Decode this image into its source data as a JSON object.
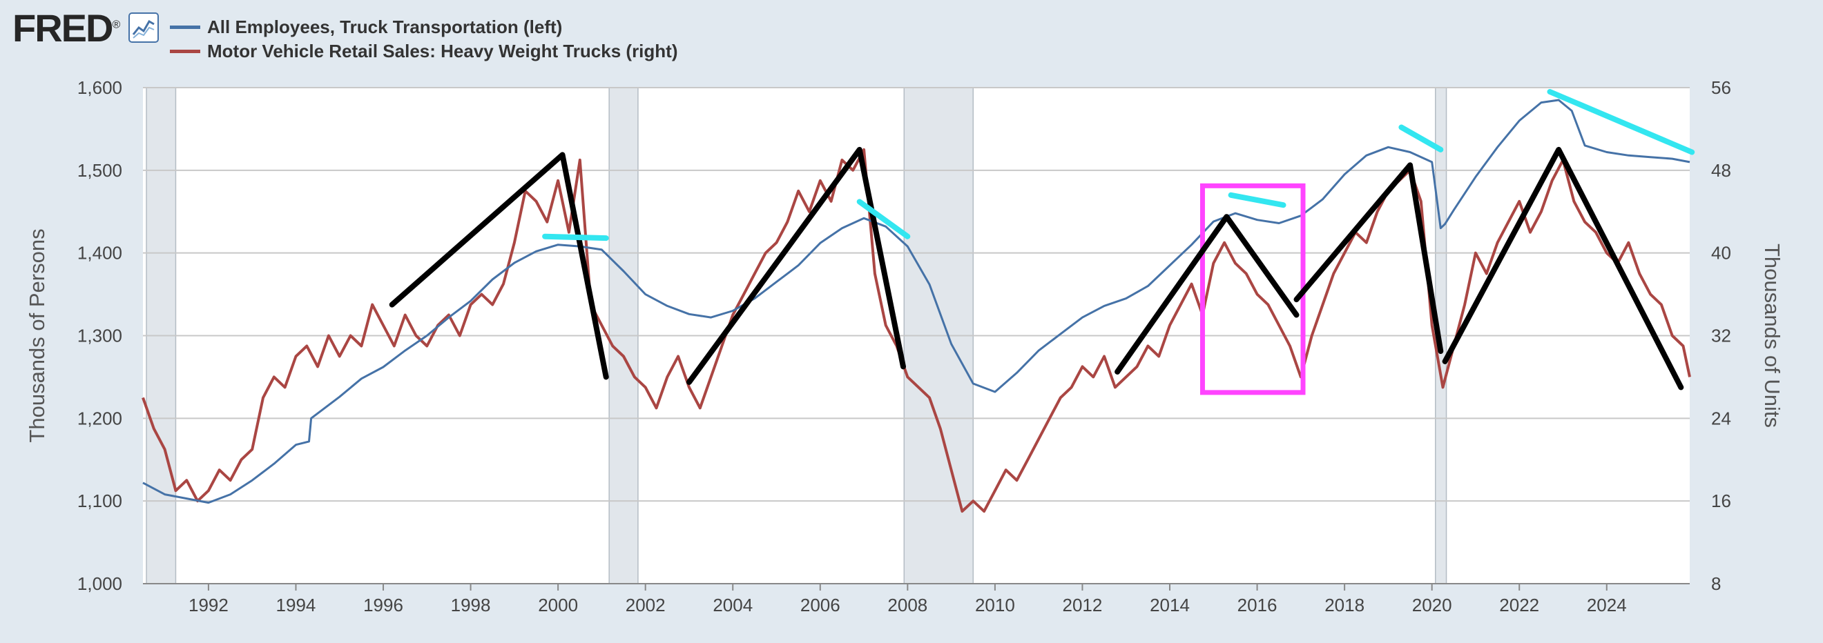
{
  "header": {
    "logo": "FRED",
    "logo_mark": "®"
  },
  "colors": {
    "background": "#e1e9f0",
    "plot_bg": "#ffffff",
    "grid": "#c8c8c8",
    "recession": "#e1e6eb",
    "series_left": "#4572a7",
    "series_right": "#aa4643",
    "trend_black": "#000000",
    "trend_cyan": "#33e6f0",
    "highlight_box": "#ff44ff"
  },
  "chart_data": {
    "type": "line",
    "title": "",
    "legend": [
      "All Employees, Truck Transportation (left)",
      "Motor Vehicle Retail Sales: Heavy Weight Trucks (right)"
    ],
    "legend_placement": "top-left",
    "x_axis": {
      "range": [
        1990.5,
        2025.9
      ],
      "ticks": [
        1992,
        1994,
        1996,
        1998,
        2000,
        2002,
        2004,
        2006,
        2008,
        2010,
        2012,
        2014,
        2016,
        2018,
        2020,
        2022,
        2024
      ],
      "tick_labels": [
        "1992",
        "1994",
        "1996",
        "1998",
        "2000",
        "2002",
        "2004",
        "2006",
        "2008",
        "2010",
        "2012",
        "2014",
        "2016",
        "2018",
        "2020",
        "2022",
        "2024"
      ]
    },
    "y_left": {
      "label": "Thousands of Persons",
      "range": [
        1000,
        1600
      ],
      "ticks": [
        1000,
        1100,
        1200,
        1300,
        1400,
        1500,
        1600
      ],
      "tick_labels": [
        "1,000",
        "1,100",
        "1,200",
        "1,300",
        "1,400",
        "1,500",
        "1,600"
      ]
    },
    "y_right": {
      "label": "Thousands of Units",
      "range": [
        8,
        56
      ],
      "ticks": [
        8,
        16,
        24,
        32,
        40,
        48,
        56
      ],
      "tick_labels": [
        "8",
        "16",
        "24",
        "32",
        "40",
        "48",
        "56"
      ]
    },
    "grid": true,
    "recessions": [
      [
        1990.58,
        1991.25
      ],
      [
        2001.17,
        2001.83
      ],
      [
        2007.92,
        2009.5
      ],
      [
        2020.08,
        2020.33
      ]
    ],
    "series": [
      {
        "name": "All Employees, Truck Transportation (left)",
        "axis": "left",
        "x": [
          1990.5,
          1991.0,
          1991.5,
          1992.0,
          1992.5,
          1993.0,
          1993.5,
          1994.0,
          1994.3,
          1994.35,
          1995.0,
          1995.5,
          1996.0,
          1996.5,
          1997.0,
          1997.5,
          1998.0,
          1998.5,
          1999.0,
          1999.5,
          2000.0,
          2000.5,
          2001.0,
          2001.5,
          2002.0,
          2002.5,
          2003.0,
          2003.5,
          2004.0,
          2004.5,
          2005.0,
          2005.5,
          2006.0,
          2006.5,
          2007.0,
          2007.5,
          2008.0,
          2008.5,
          2009.0,
          2009.5,
          2010.0,
          2010.5,
          2011.0,
          2011.5,
          2012.0,
          2012.5,
          2013.0,
          2013.5,
          2014.0,
          2014.5,
          2015.0,
          2015.5,
          2016.0,
          2016.5,
          2017.0,
          2017.5,
          2018.0,
          2018.5,
          2019.0,
          2019.5,
          2020.0,
          2020.2,
          2020.3,
          2020.5,
          2021.0,
          2021.5,
          2022.0,
          2022.5,
          2022.9,
          2023.2,
          2023.5,
          2024.0,
          2024.5,
          2025.0,
          2025.5,
          2025.9
        ],
        "values": [
          1122,
          1108,
          1103,
          1098,
          1108,
          1125,
          1145,
          1168,
          1172,
          1200,
          1226,
          1248,
          1262,
          1282,
          1300,
          1322,
          1342,
          1368,
          1388,
          1402,
          1410,
          1408,
          1404,
          1378,
          1350,
          1336,
          1326,
          1322,
          1330,
          1345,
          1365,
          1385,
          1412,
          1430,
          1442,
          1432,
          1408,
          1362,
          1290,
          1242,
          1232,
          1255,
          1282,
          1302,
          1322,
          1336,
          1345,
          1360,
          1385,
          1410,
          1438,
          1448,
          1440,
          1436,
          1445,
          1465,
          1495,
          1518,
          1528,
          1522,
          1510,
          1430,
          1435,
          1452,
          1492,
          1528,
          1560,
          1582,
          1585,
          1572,
          1530,
          1522,
          1518,
          1516,
          1514,
          1510
        ]
      },
      {
        "name": "Motor Vehicle Retail Sales: Heavy Weight Trucks (right)",
        "axis": "right",
        "x": [
          1990.5,
          1990.75,
          1991.0,
          1991.25,
          1991.5,
          1991.75,
          1992.0,
          1992.25,
          1992.5,
          1992.75,
          1993.0,
          1993.25,
          1993.5,
          1993.75,
          1994.0,
          1994.25,
          1994.5,
          1994.75,
          1995.0,
          1995.25,
          1995.5,
          1995.75,
          1996.0,
          1996.25,
          1996.5,
          1996.75,
          1997.0,
          1997.25,
          1997.5,
          1997.75,
          1998.0,
          1998.25,
          1998.5,
          1998.75,
          1999.0,
          1999.25,
          1999.5,
          1999.75,
          2000.0,
          2000.25,
          2000.5,
          2000.75,
          2001.0,
          2001.25,
          2001.5,
          2001.75,
          2002.0,
          2002.25,
          2002.5,
          2002.75,
          2003.0,
          2003.25,
          2003.5,
          2003.75,
          2004.0,
          2004.25,
          2004.5,
          2004.75,
          2005.0,
          2005.25,
          2005.5,
          2005.75,
          2006.0,
          2006.25,
          2006.5,
          2006.75,
          2007.0,
          2007.25,
          2007.5,
          2007.75,
          2008.0,
          2008.25,
          2008.5,
          2008.75,
          2009.0,
          2009.25,
          2009.5,
          2009.75,
          2010.0,
          2010.25,
          2010.5,
          2010.75,
          2011.0,
          2011.25,
          2011.5,
          2011.75,
          2012.0,
          2012.25,
          2012.5,
          2012.75,
          2013.0,
          2013.25,
          2013.5,
          2013.75,
          2014.0,
          2014.25,
          2014.5,
          2014.75,
          2015.0,
          2015.25,
          2015.5,
          2015.75,
          2016.0,
          2016.25,
          2016.5,
          2016.75,
          2017.0,
          2017.25,
          2017.5,
          2017.75,
          2018.0,
          2018.25,
          2018.5,
          2018.75,
          2019.0,
          2019.25,
          2019.5,
          2019.75,
          2020.0,
          2020.25,
          2020.5,
          2020.75,
          2021.0,
          2021.25,
          2021.5,
          2021.75,
          2022.0,
          2022.25,
          2022.5,
          2022.75,
          2023.0,
          2023.25,
          2023.5,
          2023.75,
          2024.0,
          2024.25,
          2024.5,
          2024.75,
          2025.0,
          2025.25,
          2025.5,
          2025.75,
          2025.9
        ],
        "values": [
          26,
          23,
          21,
          17,
          18,
          16,
          17,
          19,
          18,
          20,
          21,
          26,
          28,
          27,
          30,
          31,
          29,
          32,
          30,
          32,
          31,
          35,
          33,
          31,
          34,
          32,
          31,
          33,
          34,
          32,
          35,
          36,
          35,
          37,
          41,
          46,
          45,
          43,
          47,
          42,
          49,
          35,
          33,
          31,
          30,
          28,
          27,
          25,
          28,
          30,
          27,
          25,
          28,
          31,
          34,
          36,
          38,
          40,
          41,
          43,
          46,
          44,
          47,
          45,
          49,
          48,
          50,
          38,
          33,
          31,
          28,
          27,
          26,
          23,
          19,
          15,
          16,
          15,
          17,
          19,
          18,
          20,
          22,
          24,
          26,
          27,
          29,
          28,
          30,
          27,
          28,
          29,
          31,
          30,
          33,
          35,
          37,
          34,
          39,
          41,
          39,
          38,
          36,
          35,
          33,
          31,
          28,
          32,
          35,
          38,
          40,
          42,
          41,
          44,
          46,
          47,
          48,
          45,
          33,
          27,
          31,
          35,
          40,
          38,
          41,
          43,
          45,
          42,
          44,
          47,
          49,
          45,
          43,
          42,
          40,
          39,
          41,
          38,
          36,
          35,
          32,
          31,
          28
        ]
      }
    ],
    "annotations": {
      "black_trend_lines": [
        {
          "x": [
            1996.2,
            2000.1,
            2001.1
          ],
          "y_right": [
            35,
            49.5,
            28
          ]
        },
        {
          "x": [
            2003.0,
            2006.9,
            2007.9
          ],
          "y_right": [
            27.5,
            50,
            29
          ]
        },
        {
          "x": [
            2012.8,
            2015.3,
            2016.9
          ],
          "y_right": [
            28.5,
            43.5,
            34
          ]
        },
        {
          "x": [
            2016.9,
            2019.5,
            2020.2
          ],
          "y_right": [
            35.5,
            48.5,
            30.5
          ]
        },
        {
          "x": [
            2020.3,
            2022.9,
            2025.7
          ],
          "y_right": [
            29.5,
            50,
            27
          ]
        }
      ],
      "cyan_trend_lines": [
        {
          "x": [
            1999.7,
            2001.1
          ],
          "y_left": [
            1420,
            1418
          ]
        },
        {
          "x": [
            2006.9,
            2008.0
          ],
          "y_left": [
            1462,
            1420
          ]
        },
        {
          "x": [
            2015.4,
            2016.6
          ],
          "y_left": [
            1470,
            1458
          ]
        },
        {
          "x": [
            2019.3,
            2020.2
          ],
          "y_left": [
            1552,
            1525
          ]
        },
        {
          "x": [
            2022.7,
            2025.95
          ],
          "y_left": [
            1595,
            1522
          ]
        }
      ],
      "highlight_box": {
        "x": [
          2014.75,
          2017.05
        ],
        "y_right": [
          26.5,
          46.5
        ]
      }
    }
  }
}
